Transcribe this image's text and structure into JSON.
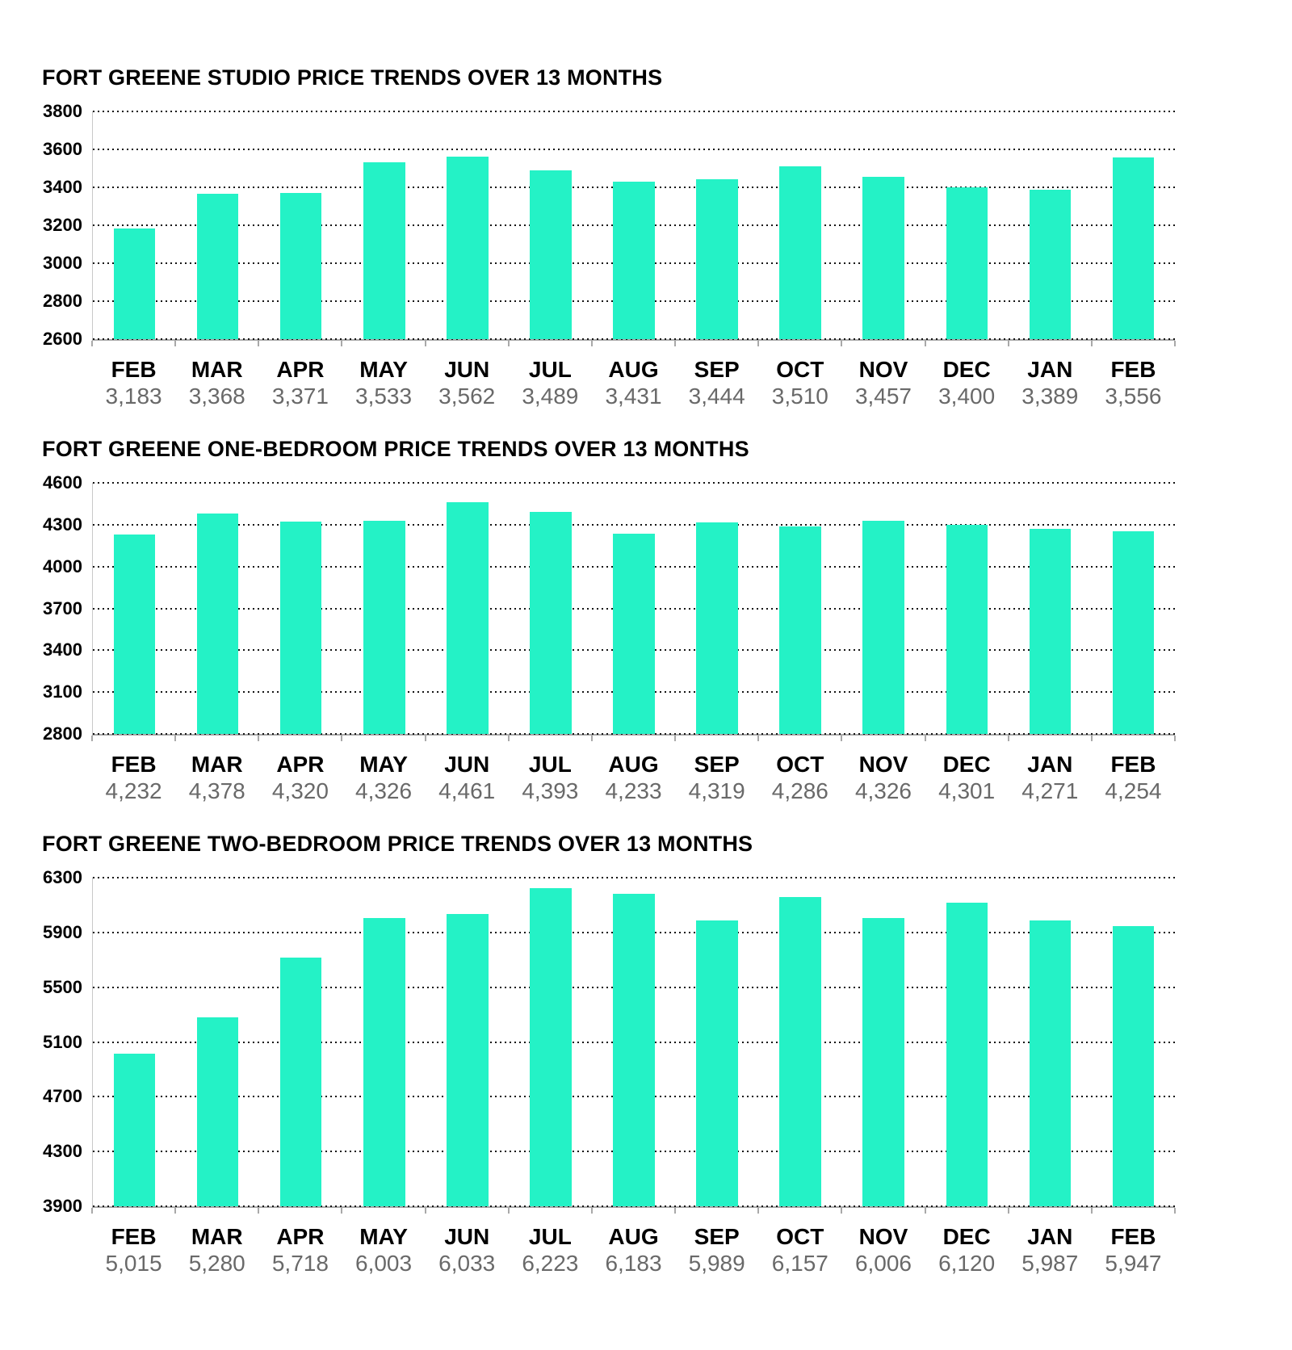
{
  "colors": {
    "bar": "#24F2C6",
    "axis": "#a9a9a9",
    "gridline": "#141414",
    "month_label": "#000000",
    "value_label": "#696969",
    "background": "#ffffff"
  },
  "chart_data": [
    {
      "type": "bar",
      "title": "FORT GREENE STUDIO PRICE TRENDS OVER 13 MONTHS",
      "categories": [
        "FEB",
        "MAR",
        "APR",
        "MAY",
        "JUN",
        "JUL",
        "AUG",
        "SEP",
        "OCT",
        "NOV",
        "DEC",
        "JAN",
        "FEB"
      ],
      "values": [
        3183,
        3368,
        3371,
        3533,
        3562,
        3489,
        3431,
        3444,
        3510,
        3457,
        3400,
        3389,
        3556
      ],
      "value_labels": [
        "3,183",
        "3,368",
        "3,371",
        "3,533",
        "3,562",
        "3,489",
        "3,431",
        "3,444",
        "3,510",
        "3,457",
        "3,400",
        "3,389",
        "3,556"
      ],
      "ylim": [
        2600,
        3800
      ],
      "yticks": [
        3800,
        3600,
        3400,
        3200,
        3000,
        2800,
        2600
      ],
      "xlabel": "",
      "ylabel": "",
      "grid": "horizontal-dotted",
      "legend": "none",
      "bar_color": "#24F2C6"
    },
    {
      "type": "bar",
      "title": "FORT GREENE ONE-BEDROOM PRICE TRENDS OVER 13 MONTHS",
      "categories": [
        "FEB",
        "MAR",
        "APR",
        "MAY",
        "JUN",
        "JUL",
        "AUG",
        "SEP",
        "OCT",
        "NOV",
        "DEC",
        "JAN",
        "FEB"
      ],
      "values": [
        4232,
        4378,
        4320,
        4326,
        4461,
        4393,
        4233,
        4319,
        4286,
        4326,
        4301,
        4271,
        4254
      ],
      "value_labels": [
        "4,232",
        "4,378",
        "4,320",
        "4,326",
        "4,461",
        "4,393",
        "4,233",
        "4,319",
        "4,286",
        "4,326",
        "4,301",
        "4,271",
        "4,254"
      ],
      "ylim": [
        2800,
        4600
      ],
      "yticks": [
        4600,
        4300,
        4000,
        3700,
        3400,
        3100,
        2800
      ],
      "xlabel": "",
      "ylabel": "",
      "grid": "horizontal-dotted",
      "legend": "none",
      "bar_color": "#24F2C6"
    },
    {
      "type": "bar",
      "title": "FORT GREENE TWO-BEDROOM PRICE TRENDS OVER 13 MONTHS",
      "categories": [
        "FEB",
        "MAR",
        "APR",
        "MAY",
        "JUN",
        "JUL",
        "AUG",
        "SEP",
        "OCT",
        "NOV",
        "DEC",
        "JAN",
        "FEB"
      ],
      "values": [
        5015,
        5280,
        5718,
        6003,
        6033,
        6223,
        6183,
        5989,
        6157,
        6006,
        6120,
        5987,
        5947
      ],
      "value_labels": [
        "5,015",
        "5,280",
        "5,718",
        "6,003",
        "6,033",
        "6,223",
        "6,183",
        "5,989",
        "6,157",
        "6,006",
        "6,120",
        "5,987",
        "5,947"
      ],
      "ylim": [
        3900,
        6300
      ],
      "yticks": [
        6300,
        5900,
        5500,
        5100,
        4700,
        4300,
        3900
      ],
      "xlabel": "",
      "ylabel": "",
      "grid": "horizontal-dotted",
      "legend": "none",
      "bar_color": "#24F2C6"
    }
  ]
}
